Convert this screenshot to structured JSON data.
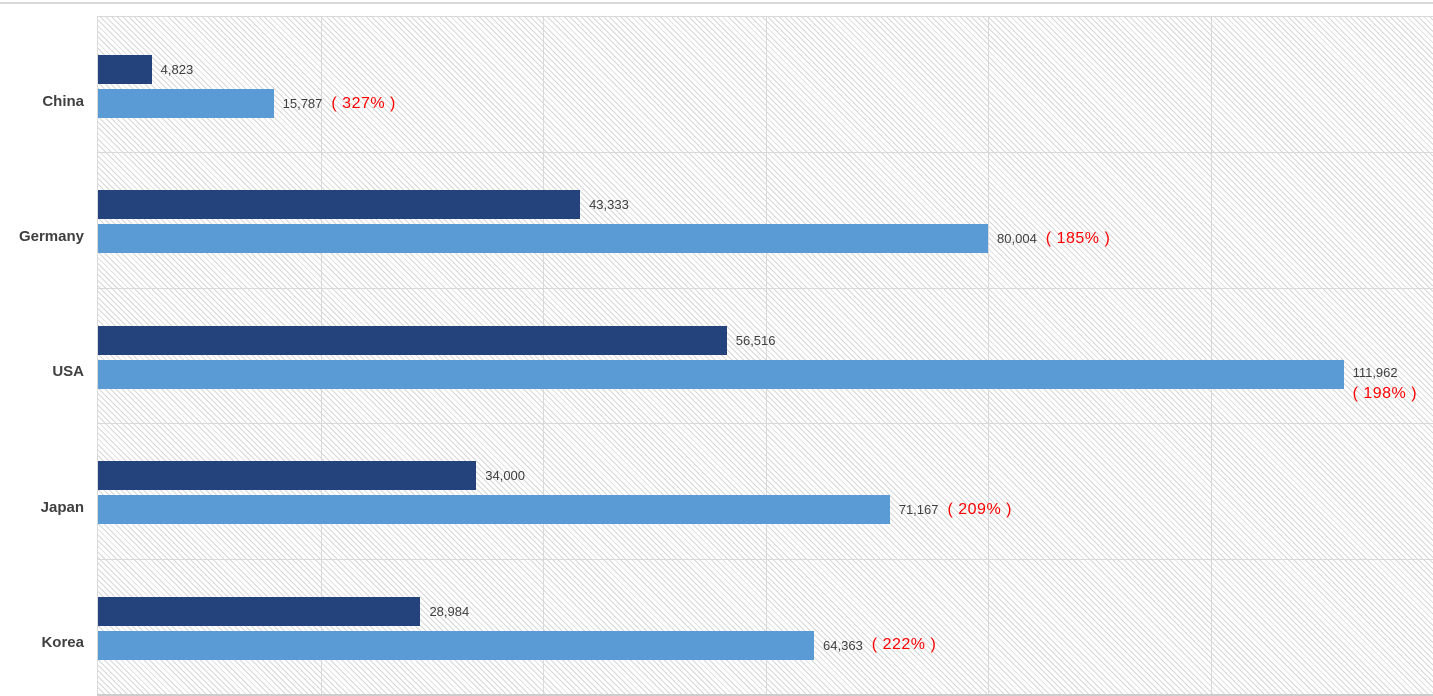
{
  "chart_data": {
    "type": "bar",
    "orientation": "horizontal",
    "title": "",
    "xlabel": "",
    "ylabel": "",
    "legend": "none",
    "grid": true,
    "xlim": [
      0,
      120000
    ],
    "gridline_step": 20000,
    "categories": [
      "China",
      "Germany",
      "USA",
      "Japan",
      "Korea"
    ],
    "series": [
      {
        "name": "dark-blue-series",
        "color": "#24437C",
        "values": [
          4823,
          43333,
          56516,
          34000,
          28984
        ],
        "labels": [
          "4,823",
          "43,333",
          "56,516",
          "34,000",
          "28,984"
        ]
      },
      {
        "name": "light-blue-series",
        "color": "#5B9BD5",
        "values": [
          15787,
          80004,
          111962,
          71167,
          64363
        ],
        "labels": [
          "15,787",
          "80,004",
          "111,962",
          "71,167",
          "64,363"
        ],
        "pct_labels": [
          "( 327% )",
          "( 185% )",
          "( 198% )",
          "( 209% )",
          "( 222% )"
        ],
        "pct_stacked": [
          false,
          false,
          true,
          false,
          false
        ]
      }
    ]
  },
  "colors": {
    "bar_dark": "#24437C",
    "bar_light": "#5B9BD5",
    "value_label": "#404040",
    "pct_label": "#FF0000",
    "category_label": "#404040",
    "gridline": "#D9D9D9",
    "background": "#FFFFFF"
  }
}
